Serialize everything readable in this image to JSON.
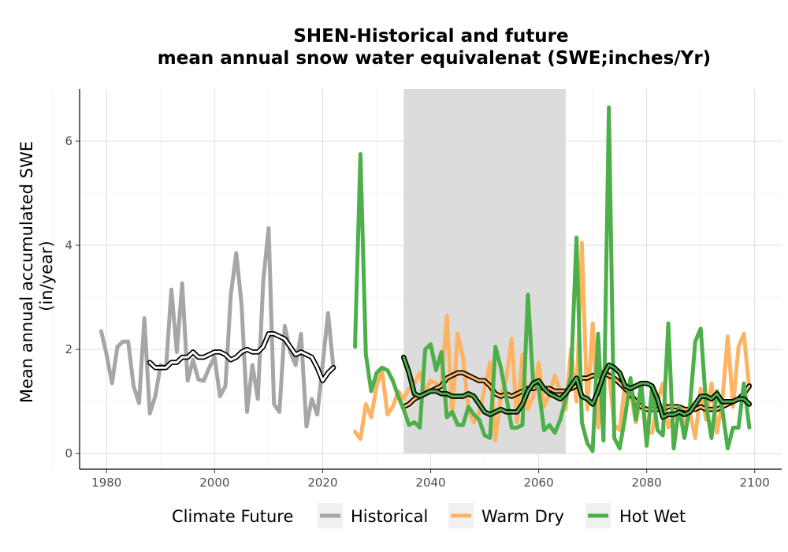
{
  "chart_data": {
    "type": "line",
    "title_line1": "SHEN-Historical and future",
    "title_line2": "mean annual snow water equivalenat (SWE;inches/Yr)",
    "xlabel": "",
    "ylabel_line1": "Mean annual accumulated SWE",
    "ylabel_line2": "(in/year)",
    "xlim": [
      1975,
      2105
    ],
    "ylim": [
      -0.3,
      7.0
    ],
    "x_ticks": [
      1980,
      2000,
      2020,
      2040,
      2060,
      2080,
      2100
    ],
    "y_ticks": [
      0,
      2,
      4,
      6
    ],
    "grid": true,
    "shaded_period": [
      2035,
      2065
    ],
    "legend": {
      "title": "Climate Future",
      "position": "bottom",
      "entries": [
        "Historical",
        "Warm Dry",
        "Hot Wet"
      ]
    },
    "series": [
      {
        "name": "Historical",
        "color": "#a6a6a6",
        "x": [
          1979,
          1980,
          1981,
          1982,
          1983,
          1984,
          1985,
          1986,
          1987,
          1988,
          1989,
          1990,
          1991,
          1992,
          1993,
          1994,
          1995,
          1996,
          1997,
          1998,
          1999,
          2000,
          2001,
          2002,
          2003,
          2004,
          2005,
          2006,
          2007,
          2008,
          2009,
          2010,
          2011,
          2012,
          2013,
          2014,
          2015,
          2016,
          2017,
          2018,
          2019,
          2020,
          2021,
          2022
        ],
        "values": [
          2.35,
          1.9,
          1.35,
          2.05,
          2.15,
          2.15,
          1.3,
          0.97,
          2.6,
          0.77,
          1.1,
          1.7,
          1.65,
          3.15,
          1.95,
          3.27,
          1.4,
          1.8,
          1.42,
          1.4,
          1.65,
          1.85,
          1.1,
          1.3,
          3.05,
          3.85,
          2.85,
          0.8,
          1.7,
          1.05,
          3.3,
          4.33,
          0.95,
          0.8,
          2.45,
          1.95,
          1.7,
          2.3,
          0.52,
          1.05,
          0.75,
          1.7,
          2.7,
          1.65
        ]
      },
      {
        "name": "Historical smooth",
        "color": "#000000",
        "x": [
          1988,
          1989,
          1990,
          1991,
          1992,
          1993,
          1994,
          1995,
          1996,
          1997,
          1998,
          1999,
          2000,
          2001,
          2002,
          2003,
          2004,
          2005,
          2006,
          2007,
          2008,
          2009,
          2010,
          2011,
          2012,
          2013,
          2014,
          2015,
          2016,
          2017,
          2018,
          2019,
          2020,
          2021,
          2022
        ],
        "values": [
          1.75,
          1.65,
          1.65,
          1.65,
          1.75,
          1.75,
          1.85,
          1.85,
          1.95,
          1.85,
          1.85,
          1.9,
          1.95,
          1.95,
          1.9,
          1.8,
          1.85,
          1.95,
          2.0,
          1.95,
          1.95,
          2.05,
          2.3,
          2.3,
          2.25,
          2.2,
          2.05,
          1.9,
          1.95,
          1.9,
          1.85,
          1.65,
          1.4,
          1.55,
          1.65
        ]
      },
      {
        "name": "Warm Dry",
        "color": "#fdb462",
        "x": [
          2026,
          2027,
          2028,
          2029,
          2030,
          2031,
          2032,
          2033,
          2034,
          2035,
          2036,
          2037,
          2038,
          2039,
          2040,
          2041,
          2042,
          2043,
          2044,
          2045,
          2046,
          2047,
          2048,
          2049,
          2050,
          2051,
          2052,
          2053,
          2054,
          2055,
          2056,
          2057,
          2058,
          2059,
          2060,
          2061,
          2062,
          2063,
          2064,
          2065,
          2066,
          2067,
          2068,
          2069,
          2070,
          2071,
          2072,
          2073,
          2074,
          2075,
          2076,
          2077,
          2078,
          2079,
          2080,
          2081,
          2082,
          2083,
          2084,
          2085,
          2086,
          2087,
          2088,
          2089,
          2090,
          2091,
          2092,
          2093,
          2094,
          2095,
          2096,
          2097,
          2098,
          2099
        ],
        "values": [
          0.42,
          0.28,
          0.95,
          0.7,
          1.3,
          1.6,
          0.75,
          0.9,
          1.2,
          1.05,
          1.25,
          1.35,
          1.55,
          1.2,
          1.4,
          1.35,
          1.3,
          2.65,
          0.75,
          2.3,
          1.85,
          0.85,
          0.6,
          0.8,
          1.25,
          1.75,
          0.25,
          1.1,
          1.45,
          2.2,
          0.6,
          1.9,
          0.85,
          1.1,
          1.75,
          0.9,
          1.15,
          1.5,
          1.2,
          0.85,
          2.0,
          1.0,
          4.05,
          0.85,
          2.5,
          0.5,
          1.6,
          1.55,
          0.55,
          0.45,
          1.35,
          1.2,
          0.6,
          1.1,
          0.4,
          0.4,
          1.0,
          1.35,
          0.5,
          0.7,
          0.9,
          0.55,
          0.8,
          0.3,
          1.25,
          0.65,
          1.35,
          0.4,
          1.0,
          2.25,
          0.9,
          2.05,
          2.3,
          1.25
        ]
      },
      {
        "name": "Warm Dry smooth",
        "color": "#fdb462",
        "x": [
          2035,
          2036,
          2037,
          2038,
          2039,
          2040,
          2041,
          2042,
          2043,
          2044,
          2045,
          2046,
          2047,
          2048,
          2049,
          2050,
          2051,
          2052,
          2053,
          2054,
          2055,
          2056,
          2057,
          2058,
          2059,
          2060,
          2061,
          2062,
          2063,
          2064,
          2065,
          2066,
          2067,
          2068,
          2069,
          2070,
          2071,
          2072,
          2073,
          2074,
          2075,
          2076,
          2077,
          2078,
          2079,
          2080,
          2081,
          2082,
          2083,
          2084,
          2085,
          2086,
          2087,
          2088,
          2089,
          2090,
          2091,
          2092,
          2093,
          2094,
          2095,
          2096,
          2097,
          2098,
          2099
        ],
        "values": [
          0.9,
          0.95,
          1.05,
          1.1,
          1.15,
          1.2,
          1.25,
          1.3,
          1.45,
          1.5,
          1.55,
          1.55,
          1.5,
          1.45,
          1.4,
          1.4,
          1.3,
          1.15,
          1.1,
          1.15,
          1.1,
          1.15,
          1.2,
          1.25,
          1.25,
          1.3,
          1.25,
          1.25,
          1.2,
          1.2,
          1.2,
          1.25,
          1.3,
          1.45,
          1.45,
          1.5,
          1.5,
          1.55,
          1.5,
          1.45,
          1.35,
          1.25,
          1.15,
          1.0,
          0.9,
          0.85,
          0.85,
          0.85,
          0.85,
          0.9,
          0.9,
          0.9,
          0.85,
          0.85,
          0.85,
          0.9,
          0.85,
          0.85,
          0.85,
          0.9,
          0.95,
          1.0,
          1.05,
          1.15,
          1.3
        ]
      },
      {
        "name": "Hot Wet",
        "color": "#4daf4a",
        "x": [
          2026,
          2027,
          2028,
          2029,
          2030,
          2031,
          2032,
          2033,
          2034,
          2035,
          2036,
          2037,
          2038,
          2039,
          2040,
          2041,
          2042,
          2043,
          2044,
          2045,
          2046,
          2047,
          2048,
          2049,
          2050,
          2051,
          2052,
          2053,
          2054,
          2055,
          2056,
          2057,
          2058,
          2059,
          2060,
          2061,
          2062,
          2063,
          2064,
          2065,
          2066,
          2067,
          2068,
          2069,
          2070,
          2071,
          2072,
          2073,
          2074,
          2075,
          2076,
          2077,
          2078,
          2079,
          2080,
          2081,
          2082,
          2083,
          2084,
          2085,
          2086,
          2087,
          2088,
          2089,
          2090,
          2091,
          2092,
          2093,
          2094,
          2095,
          2096,
          2097,
          2098,
          2099
        ],
        "values": [
          2.05,
          5.75,
          1.9,
          1.2,
          1.55,
          1.65,
          1.6,
          1.4,
          1.1,
          0.85,
          0.55,
          0.6,
          0.5,
          2.0,
          2.1,
          1.6,
          1.95,
          0.7,
          0.8,
          0.55,
          0.55,
          0.9,
          0.75,
          0.65,
          0.35,
          0.3,
          2.05,
          1.65,
          1.1,
          0.5,
          0.5,
          0.55,
          3.05,
          1.35,
          1.25,
          0.45,
          0.55,
          0.4,
          0.65,
          1.05,
          1.5,
          4.15,
          0.6,
          0.2,
          0.05,
          2.3,
          0.25,
          6.65,
          0.3,
          0.1,
          0.7,
          1.45,
          0.65,
          1.35,
          0.15,
          1.3,
          0.45,
          0.35,
          2.5,
          0.1,
          0.9,
          0.3,
          0.9,
          2.15,
          2.4,
          0.95,
          0.3,
          1.2,
          0.85,
          0.1,
          0.5,
          0.5,
          1.35,
          0.5
        ]
      },
      {
        "name": "Hot Wet smooth",
        "color": "#4daf4a",
        "x": [
          2035,
          2036,
          2037,
          2038,
          2039,
          2040,
          2041,
          2042,
          2043,
          2044,
          2045,
          2046,
          2047,
          2048,
          2049,
          2050,
          2051,
          2052,
          2053,
          2054,
          2055,
          2056,
          2057,
          2058,
          2059,
          2060,
          2061,
          2062,
          2063,
          2064,
          2065,
          2066,
          2067,
          2068,
          2069,
          2070,
          2071,
          2072,
          2073,
          2074,
          2075,
          2076,
          2077,
          2078,
          2079,
          2080,
          2081,
          2082,
          2083,
          2084,
          2085,
          2086,
          2087,
          2088,
          2089,
          2090,
          2091,
          2092,
          2093,
          2094,
          2095,
          2096,
          2097,
          2098,
          2099
        ],
        "values": [
          1.85,
          1.55,
          1.15,
          1.1,
          1.15,
          1.2,
          1.2,
          1.15,
          1.15,
          1.1,
          1.1,
          1.1,
          1.15,
          1.1,
          0.95,
          0.8,
          0.75,
          0.8,
          0.85,
          0.8,
          0.8,
          0.8,
          0.95,
          1.2,
          1.35,
          1.4,
          1.25,
          1.15,
          1.1,
          1.05,
          1.15,
          1.3,
          1.45,
          1.1,
          1.05,
          0.95,
          1.2,
          1.5,
          1.7,
          1.65,
          1.55,
          1.3,
          1.25,
          1.3,
          1.35,
          1.35,
          1.3,
          1.05,
          0.7,
          0.75,
          0.75,
          0.8,
          0.75,
          0.8,
          0.95,
          1.1,
          1.1,
          1.05,
          1.15,
          1.0,
          1.0,
          1.0,
          1.05,
          1.05,
          0.95
        ]
      }
    ]
  }
}
